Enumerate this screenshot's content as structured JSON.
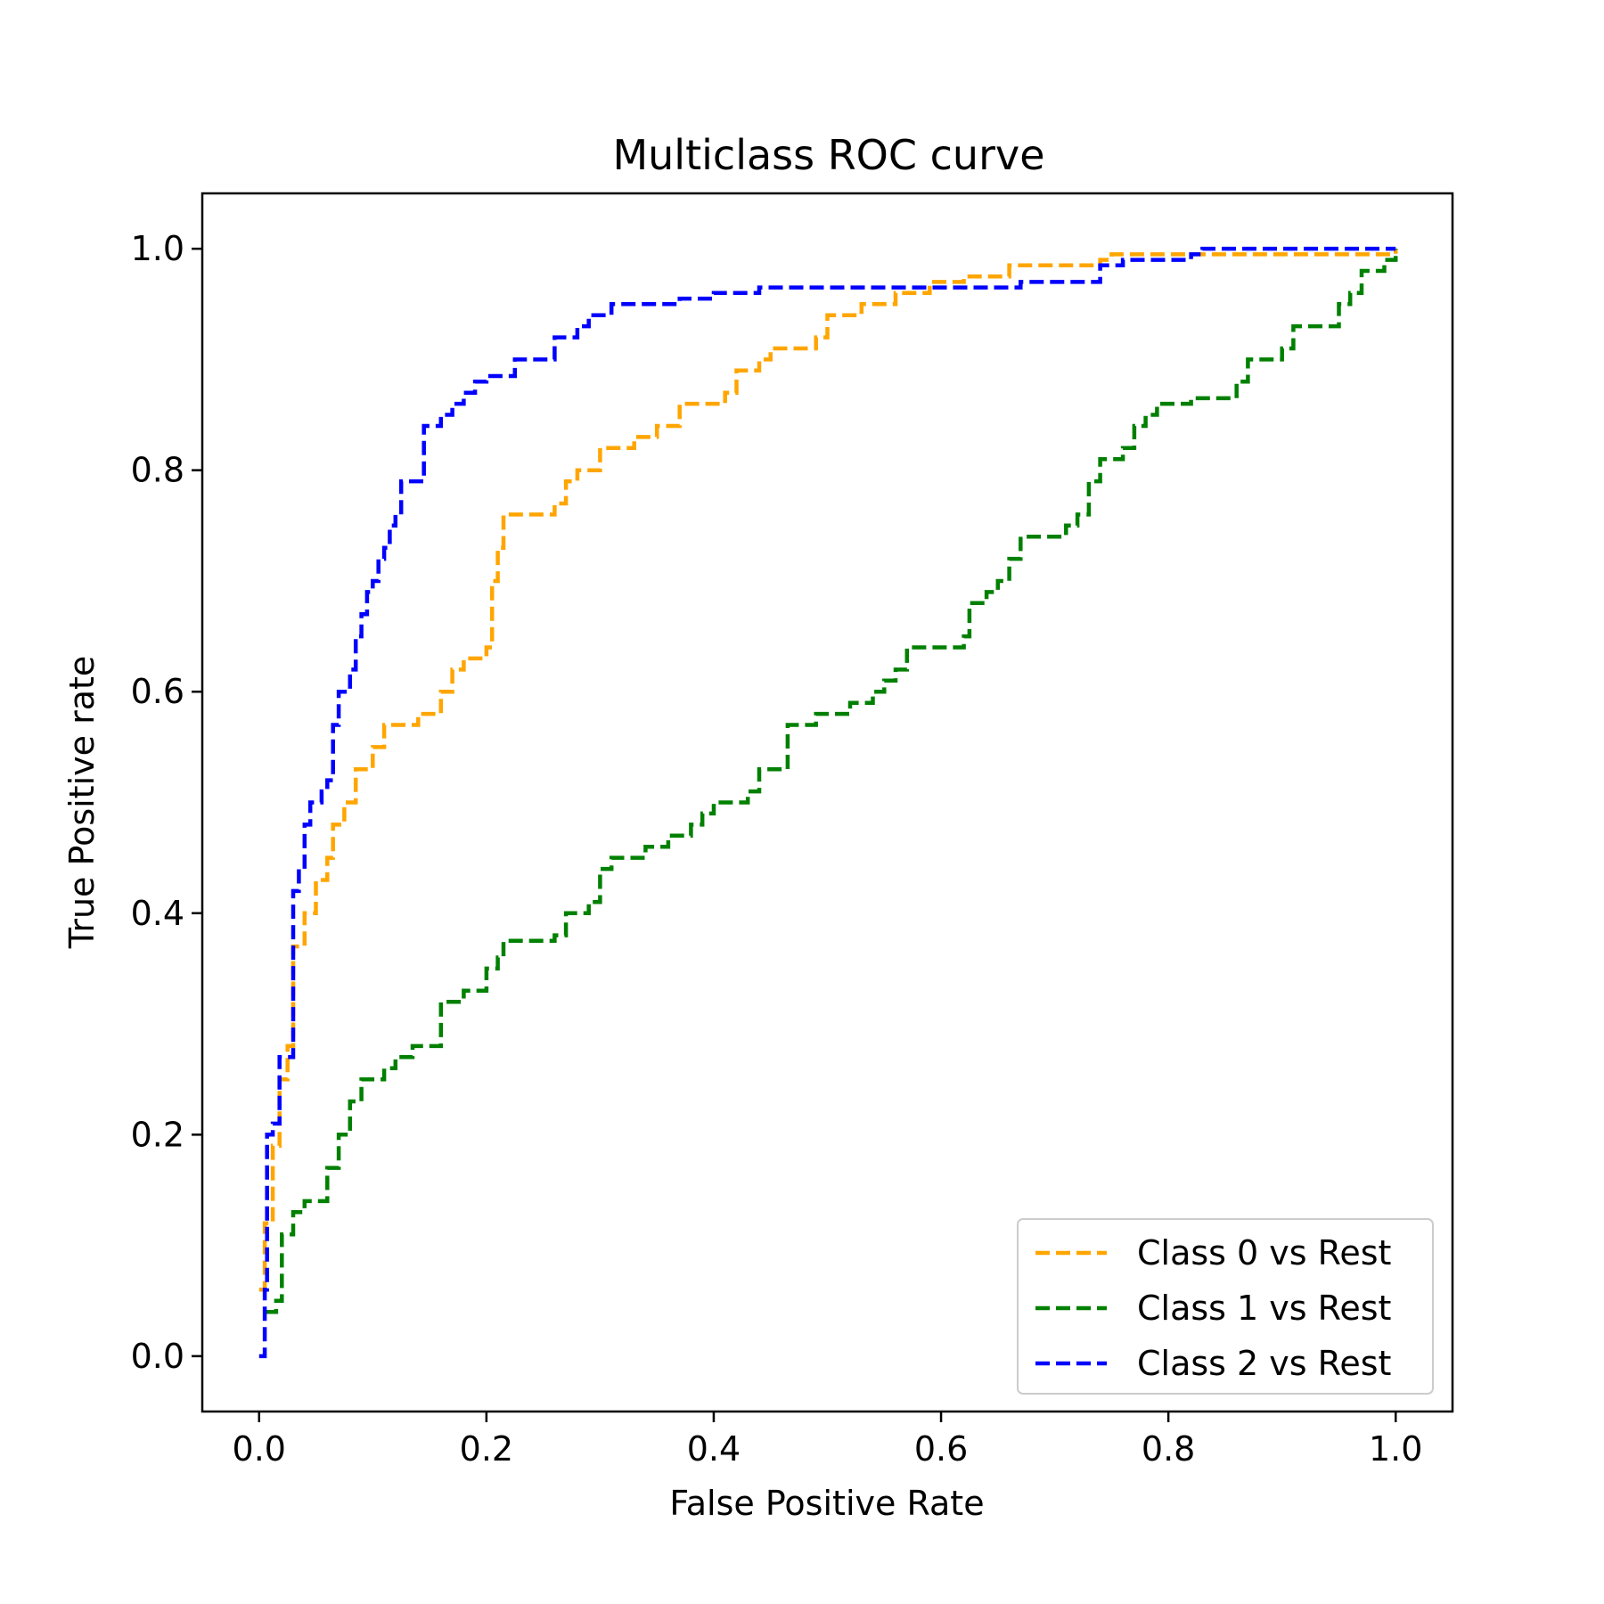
{
  "chart_data": {
    "type": "line",
    "title": "Multiclass ROC curve",
    "xlabel": "False Positive Rate",
    "ylabel": "True Positive rate",
    "xlim": [
      -0.05,
      1.05
    ],
    "ylim": [
      -0.05,
      1.05
    ],
    "xticks": [
      "0.0",
      "0.2",
      "0.4",
      "0.6",
      "0.8",
      "1.0"
    ],
    "yticks": [
      "0.0",
      "0.2",
      "0.4",
      "0.6",
      "0.8",
      "1.0"
    ],
    "grid": false,
    "legend_position": "lower-right",
    "line_style": "dashed",
    "series": [
      {
        "name": "Class 0 vs Rest",
        "color": "#FFA500",
        "points": [
          [
            0,
            0.06
          ],
          [
            0.005,
            0.12
          ],
          [
            0.01,
            0.12
          ],
          [
            0.012,
            0.19
          ],
          [
            0.018,
            0.25
          ],
          [
            0.025,
            0.28
          ],
          [
            0.03,
            0.37
          ],
          [
            0.04,
            0.4
          ],
          [
            0.05,
            0.43
          ],
          [
            0.06,
            0.45
          ],
          [
            0.065,
            0.48
          ],
          [
            0.075,
            0.5
          ],
          [
            0.085,
            0.53
          ],
          [
            0.1,
            0.55
          ],
          [
            0.11,
            0.57
          ],
          [
            0.14,
            0.58
          ],
          [
            0.16,
            0.6
          ],
          [
            0.17,
            0.62
          ],
          [
            0.18,
            0.63
          ],
          [
            0.2,
            0.64
          ],
          [
            0.205,
            0.7
          ],
          [
            0.21,
            0.73
          ],
          [
            0.215,
            0.76
          ],
          [
            0.26,
            0.77
          ],
          [
            0.27,
            0.79
          ],
          [
            0.28,
            0.8
          ],
          [
            0.3,
            0.82
          ],
          [
            0.33,
            0.83
          ],
          [
            0.35,
            0.84
          ],
          [
            0.37,
            0.86
          ],
          [
            0.41,
            0.87
          ],
          [
            0.42,
            0.89
          ],
          [
            0.44,
            0.9
          ],
          [
            0.45,
            0.91
          ],
          [
            0.49,
            0.92
          ],
          [
            0.5,
            0.94
          ],
          [
            0.53,
            0.95
          ],
          [
            0.56,
            0.96
          ],
          [
            0.59,
            0.97
          ],
          [
            0.62,
            0.975
          ],
          [
            0.66,
            0.985
          ],
          [
            0.74,
            0.99
          ],
          [
            0.75,
            0.995
          ],
          [
            0.9,
            0.995
          ],
          [
            1,
            1
          ]
        ]
      },
      {
        "name": "Class 1 vs Rest",
        "color": "#008000",
        "points": [
          [
            0.005,
            0.04
          ],
          [
            0.015,
            0.05
          ],
          [
            0.02,
            0.11
          ],
          [
            0.03,
            0.13
          ],
          [
            0.04,
            0.14
          ],
          [
            0.055,
            0.14
          ],
          [
            0.06,
            0.17
          ],
          [
            0.07,
            0.2
          ],
          [
            0.08,
            0.23
          ],
          [
            0.09,
            0.25
          ],
          [
            0.11,
            0.26
          ],
          [
            0.12,
            0.27
          ],
          [
            0.135,
            0.28
          ],
          [
            0.155,
            0.28
          ],
          [
            0.16,
            0.32
          ],
          [
            0.18,
            0.33
          ],
          [
            0.2,
            0.35
          ],
          [
            0.21,
            0.36
          ],
          [
            0.215,
            0.375
          ],
          [
            0.26,
            0.38
          ],
          [
            0.27,
            0.4
          ],
          [
            0.29,
            0.41
          ],
          [
            0.3,
            0.44
          ],
          [
            0.31,
            0.45
          ],
          [
            0.34,
            0.46
          ],
          [
            0.36,
            0.47
          ],
          [
            0.38,
            0.48
          ],
          [
            0.39,
            0.49
          ],
          [
            0.4,
            0.5
          ],
          [
            0.43,
            0.51
          ],
          [
            0.44,
            0.53
          ],
          [
            0.46,
            0.53
          ],
          [
            0.465,
            0.57
          ],
          [
            0.49,
            0.58
          ],
          [
            0.51,
            0.58
          ],
          [
            0.52,
            0.59
          ],
          [
            0.54,
            0.6
          ],
          [
            0.55,
            0.61
          ],
          [
            0.56,
            0.62
          ],
          [
            0.57,
            0.64
          ],
          [
            0.61,
            0.64
          ],
          [
            0.62,
            0.65
          ],
          [
            0.625,
            0.68
          ],
          [
            0.64,
            0.69
          ],
          [
            0.65,
            0.7
          ],
          [
            0.66,
            0.72
          ],
          [
            0.67,
            0.74
          ],
          [
            0.7,
            0.74
          ],
          [
            0.71,
            0.75
          ],
          [
            0.72,
            0.76
          ],
          [
            0.73,
            0.79
          ],
          [
            0.74,
            0.81
          ],
          [
            0.76,
            0.82
          ],
          [
            0.77,
            0.84
          ],
          [
            0.78,
            0.85
          ],
          [
            0.79,
            0.86
          ],
          [
            0.81,
            0.86
          ],
          [
            0.82,
            0.865
          ],
          [
            0.85,
            0.865
          ],
          [
            0.86,
            0.88
          ],
          [
            0.87,
            0.9
          ],
          [
            0.9,
            0.91
          ],
          [
            0.91,
            0.93
          ],
          [
            0.93,
            0.93
          ],
          [
            0.95,
            0.95
          ],
          [
            0.96,
            0.96
          ],
          [
            0.97,
            0.98
          ],
          [
            0.99,
            0.99
          ],
          [
            1,
            1
          ]
        ]
      },
      {
        "name": "Class 2 vs Rest",
        "color": "#0000FF",
        "points": [
          [
            0,
            0
          ],
          [
            0.005,
            0.06
          ],
          [
            0.007,
            0.2
          ],
          [
            0.012,
            0.21
          ],
          [
            0.018,
            0.27
          ],
          [
            0.027,
            0.27
          ],
          [
            0.03,
            0.42
          ],
          [
            0.035,
            0.44
          ],
          [
            0.04,
            0.48
          ],
          [
            0.045,
            0.5
          ],
          [
            0.055,
            0.51
          ],
          [
            0.06,
            0.52
          ],
          [
            0.065,
            0.57
          ],
          [
            0.07,
            0.6
          ],
          [
            0.08,
            0.62
          ],
          [
            0.085,
            0.65
          ],
          [
            0.09,
            0.67
          ],
          [
            0.095,
            0.69
          ],
          [
            0.1,
            0.7
          ],
          [
            0.105,
            0.72
          ],
          [
            0.11,
            0.73
          ],
          [
            0.115,
            0.75
          ],
          [
            0.12,
            0.76
          ],
          [
            0.125,
            0.79
          ],
          [
            0.14,
            0.79
          ],
          [
            0.145,
            0.84
          ],
          [
            0.16,
            0.85
          ],
          [
            0.17,
            0.86
          ],
          [
            0.18,
            0.87
          ],
          [
            0.19,
            0.88
          ],
          [
            0.2,
            0.885
          ],
          [
            0.22,
            0.885
          ],
          [
            0.225,
            0.9
          ],
          [
            0.25,
            0.9
          ],
          [
            0.26,
            0.92
          ],
          [
            0.28,
            0.93
          ],
          [
            0.29,
            0.94
          ],
          [
            0.31,
            0.95
          ],
          [
            0.35,
            0.95
          ],
          [
            0.37,
            0.955
          ],
          [
            0.4,
            0.96
          ],
          [
            0.43,
            0.96
          ],
          [
            0.44,
            0.965
          ],
          [
            0.65,
            0.965
          ],
          [
            0.67,
            0.97
          ],
          [
            0.73,
            0.97
          ],
          [
            0.74,
            0.985
          ],
          [
            0.76,
            0.99
          ],
          [
            0.82,
            0.995
          ],
          [
            0.83,
            1
          ],
          [
            1,
            1
          ]
        ]
      }
    ]
  }
}
